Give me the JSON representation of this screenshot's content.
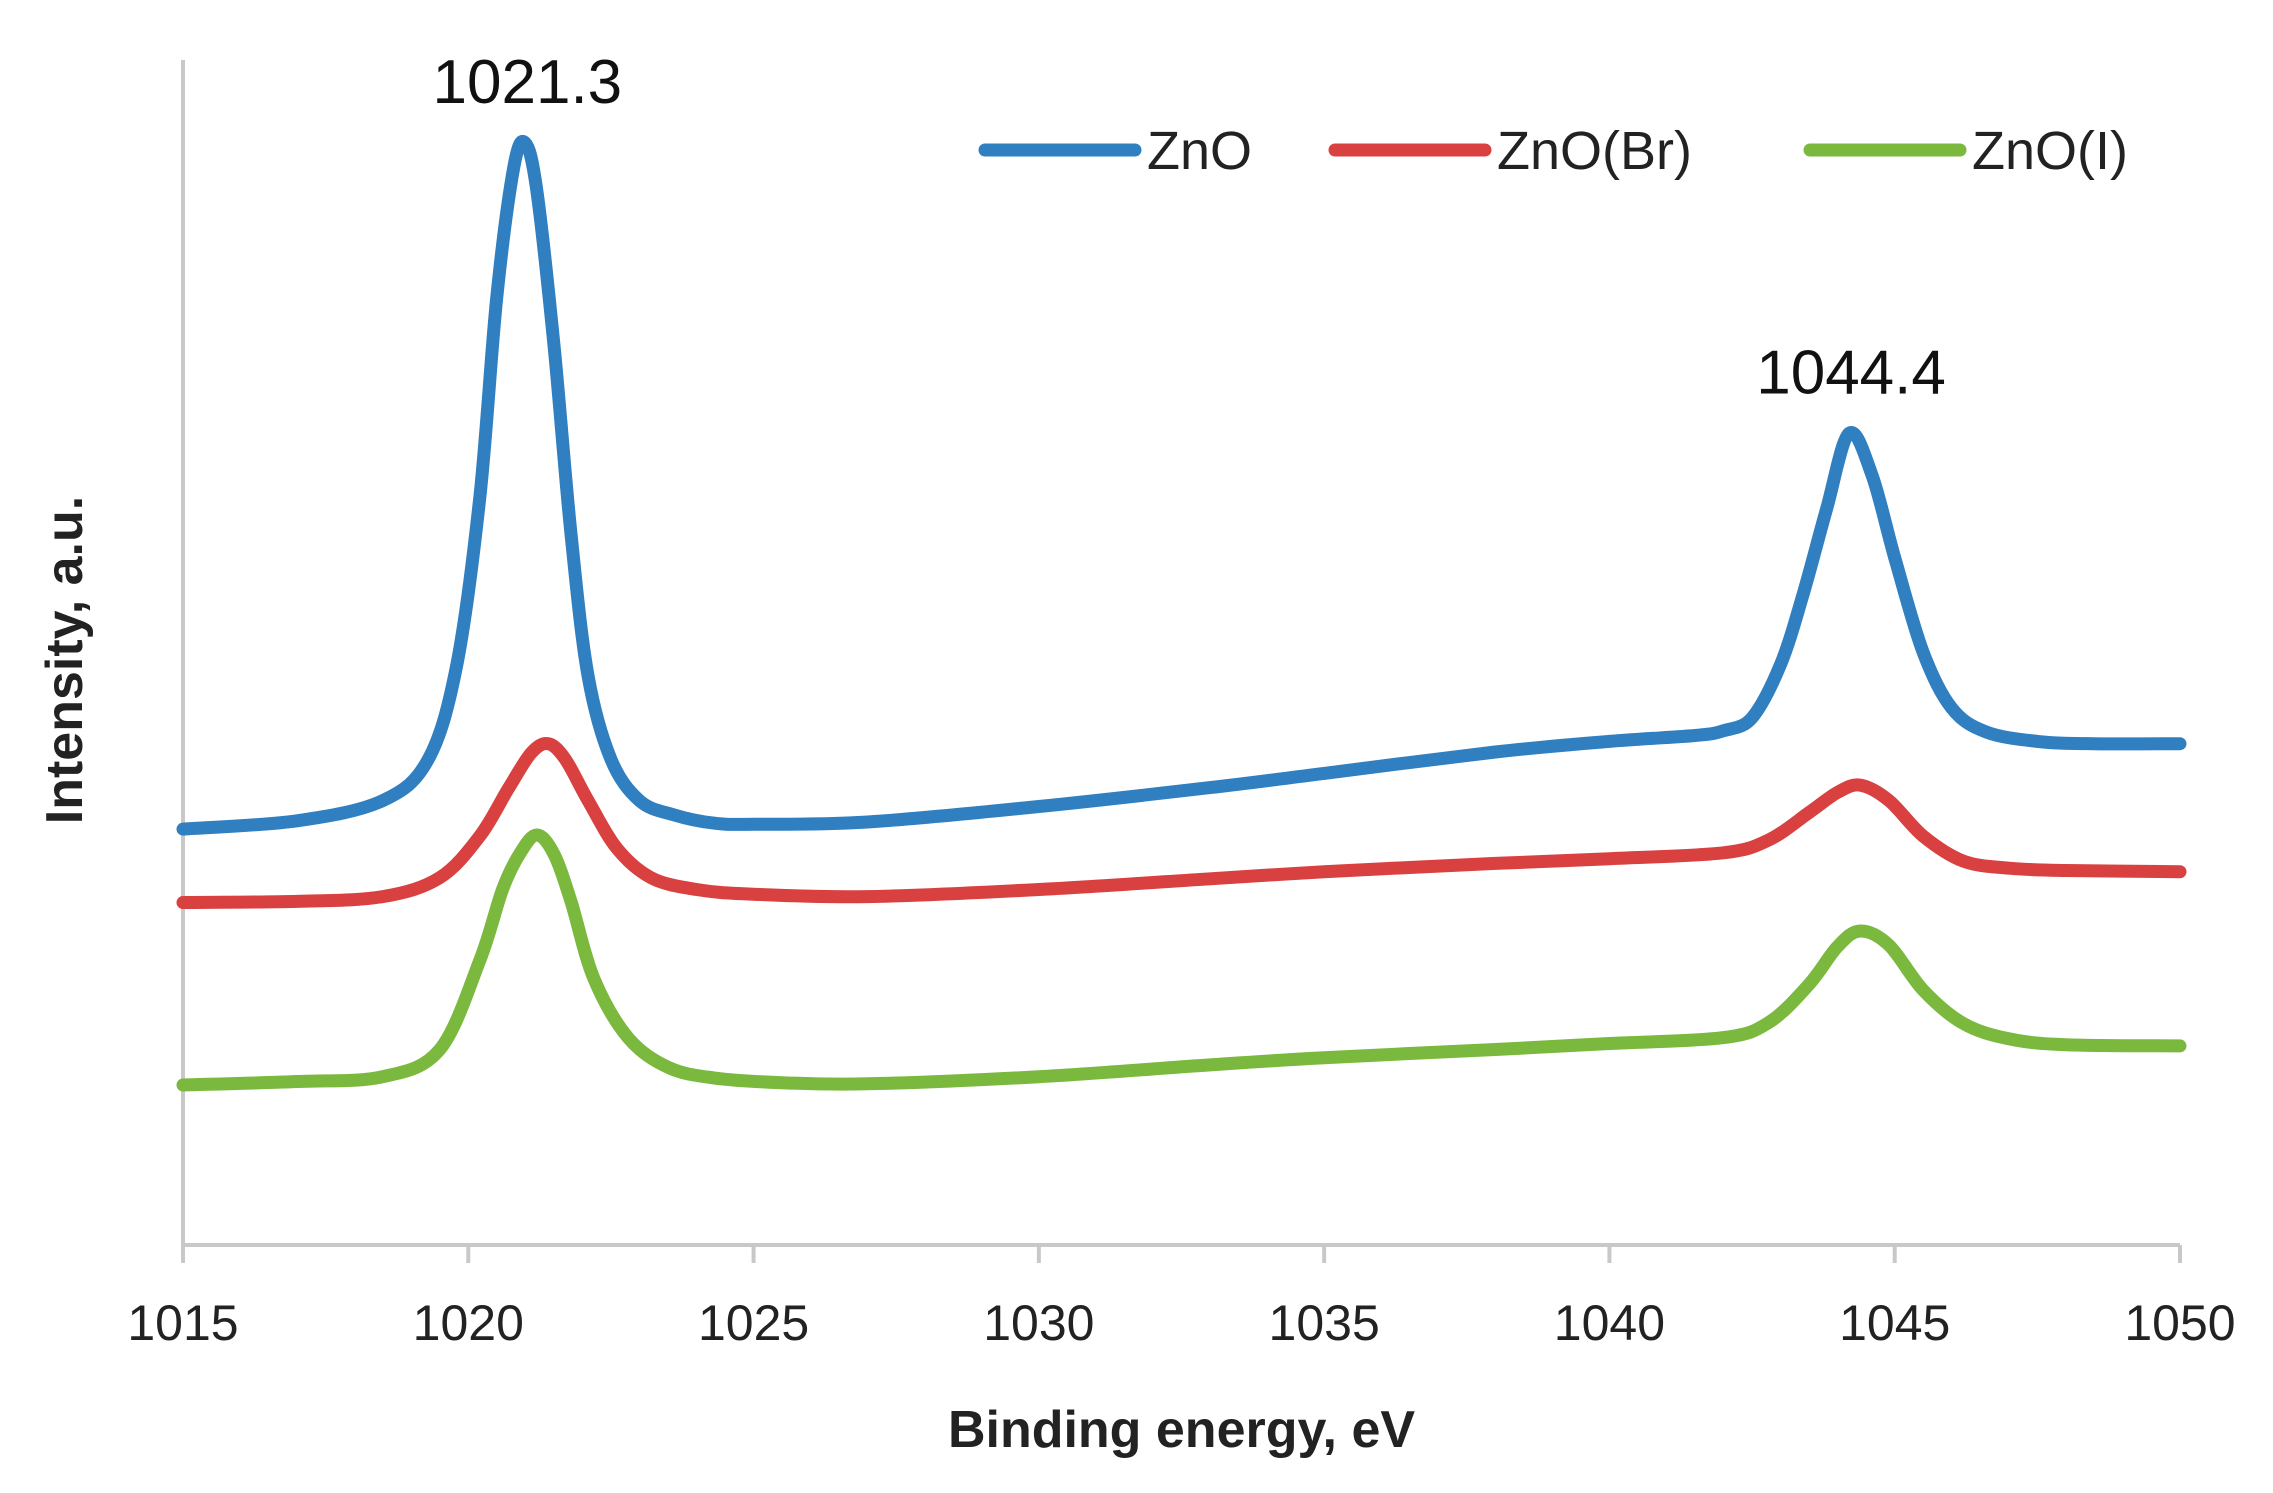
{
  "chart_data": {
    "type": "line",
    "title": "",
    "xlabel": "Binding energy, eV",
    "ylabel": "Intensity, a.u.",
    "xlim": [
      1015,
      1050
    ],
    "ylim": [
      0,
      100
    ],
    "xticks": [
      "1015",
      "1020",
      "1025",
      "1030",
      "1035",
      "1040",
      "1045",
      "1050"
    ],
    "grid": false,
    "legend_position": "top-right",
    "annotations": [
      {
        "text": "1021.3",
        "x": 1021.0,
        "y": 94.5
      },
      {
        "text": "1044.4",
        "x": 1044.2,
        "y": 70
      }
    ],
    "series": [
      {
        "name": "ZnO",
        "color": "#2f7fc1",
        "x": [
          1015,
          1017,
          1018.5,
          1019.3,
          1019.8,
          1020.2,
          1020.5,
          1020.8,
          1021.0,
          1021.2,
          1021.5,
          1021.8,
          1022.1,
          1022.5,
          1023.0,
          1023.6,
          1024.3,
          1025,
          1027,
          1030,
          1033,
          1035,
          1038,
          1040,
          1041.5,
          1042,
          1042.5,
          1043.0,
          1043.4,
          1043.8,
          1044.2,
          1044.6,
          1045.0,
          1045.5,
          1046.0,
          1046.6,
          1047.5,
          1048.5,
          1050
        ],
        "values": [
          35.1,
          35.8,
          37.5,
          41,
          49,
          63,
          80,
          91,
          93,
          89,
          76,
          60,
          48,
          41,
          37.5,
          36.3,
          35.6,
          35.5,
          35.7,
          37,
          38.6,
          39.8,
          41.6,
          42.5,
          43,
          43.4,
          44.5,
          49,
          55,
          62,
          68.5,
          65,
          58,
          50,
          45.3,
          43.3,
          42.5,
          42.3,
          42.3
        ]
      },
      {
        "name": "ZnO(Br)",
        "color": "#d94040",
        "x": [
          1015,
          1017,
          1018.5,
          1019.5,
          1020.2,
          1020.7,
          1021.1,
          1021.4,
          1021.7,
          1022.1,
          1022.6,
          1023.2,
          1024.0,
          1025,
          1027,
          1030,
          1033,
          1035,
          1038,
          1040,
          1042,
          1042.8,
          1043.5,
          1044.0,
          1044.4,
          1044.9,
          1045.5,
          1046.2,
          1047,
          1048,
          1050
        ],
        "values": [
          28.9,
          29,
          29.4,
          31,
          34.5,
          38.5,
          41.5,
          42.3,
          41,
          37.5,
          33.5,
          31,
          30,
          29.6,
          29.4,
          30,
          30.9,
          31.5,
          32.2,
          32.6,
          33.1,
          34.2,
          36.5,
          38.2,
          38.8,
          37.5,
          34.5,
          32.4,
          31.8,
          31.6,
          31.5
        ]
      },
      {
        "name": "ZnO(I)",
        "color": "#7ab83e",
        "x": [
          1015,
          1017,
          1018.5,
          1019.5,
          1020.2,
          1020.6,
          1020.9,
          1021.2,
          1021.5,
          1021.8,
          1022.2,
          1022.8,
          1023.5,
          1024.3,
          1025.5,
          1027,
          1030,
          1033,
          1035,
          1038,
          1040,
          1042,
          1042.8,
          1043.5,
          1044.0,
          1044.4,
          1044.9,
          1045.5,
          1046.2,
          1047,
          1048,
          1050
        ],
        "values": [
          13.5,
          13.8,
          14.2,
          16.5,
          24,
          30,
          33,
          34.6,
          33,
          29,
          22.5,
          17.5,
          15,
          14.1,
          13.7,
          13.6,
          14.2,
          15.2,
          15.8,
          16.5,
          17,
          17.5,
          18.8,
          22,
          25.2,
          26.5,
          25.3,
          21.5,
          18.7,
          17.4,
          16.9,
          16.8
        ]
      }
    ]
  }
}
